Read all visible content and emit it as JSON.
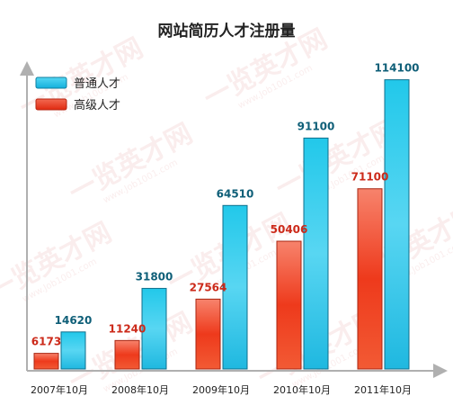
{
  "chart_data": {
    "type": "bar",
    "title": "网站简历人才注册量",
    "categories": [
      "2007年10月",
      "2008年10月",
      "2009年10月",
      "2010年10月",
      "2011年10月"
    ],
    "series": [
      {
        "name": "高级人才",
        "values": [
          6173,
          11240,
          27564,
          50406,
          71100
        ],
        "color": "#ee3a1c",
        "label_color": "#cc2a1a"
      },
      {
        "name": "普通人才",
        "values": [
          14620,
          31800,
          64510,
          91100,
          114100
        ],
        "color": "#22bce0",
        "label_color": "#0f5f78"
      }
    ],
    "legend_order": [
      "普通人才",
      "高级人才"
    ],
    "legend_position": "top-left",
    "ylim": [
      0,
      120000
    ],
    "grid": false,
    "xlabel": "",
    "ylabel": ""
  },
  "watermark": {
    "text": "一览英才网",
    "sub": "www.Job1001.com"
  }
}
